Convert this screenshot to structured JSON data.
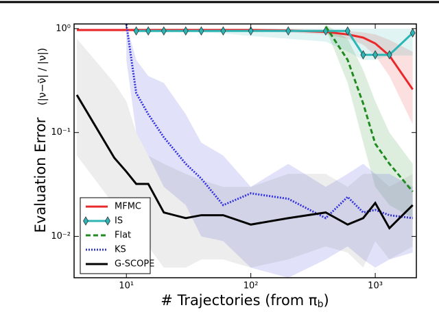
{
  "chart_data": {
    "type": "line",
    "xlabel_parts": [
      "# Trajectories (from π",
      "b",
      ")"
    ],
    "ylabel": "Evaluation Error",
    "ylabel_formula": "(|ν−ν̄| / |ν|)",
    "log_x": true,
    "log_y": true,
    "xlim": [
      3.8,
      2140
    ],
    "ylim": [
      0.004,
      1.11
    ],
    "xticks": [
      {
        "value": 10,
        "label": "10¹"
      },
      {
        "value": 100,
        "label": "10²"
      },
      {
        "value": 1000,
        "label": "10³"
      }
    ],
    "yticks": [
      {
        "value": 0.01,
        "label": "10⁻²"
      },
      {
        "value": 0.1,
        "label": "10⁻¹"
      },
      {
        "value": 1,
        "label": "10⁰"
      }
    ],
    "legend": "lower left",
    "x": [
      4,
      8,
      10,
      12,
      15,
      20,
      30,
      40,
      60,
      100,
      200,
      400,
      600,
      800,
      1000,
      1300,
      2000
    ],
    "series": [
      {
        "name": "MFMC",
        "color": "#e8282b",
        "linestyle": "solid",
        "values": [
          0.97,
          0.97,
          0.97,
          0.97,
          0.97,
          0.97,
          0.97,
          0.97,
          0.97,
          0.97,
          0.96,
          0.93,
          0.88,
          0.82,
          0.72,
          0.55,
          0.26
        ],
        "lower": [
          0.94,
          0.94,
          0.94,
          0.94,
          0.94,
          0.94,
          0.94,
          0.94,
          0.94,
          0.94,
          0.92,
          0.88,
          0.8,
          0.7,
          0.55,
          0.35,
          0.12
        ],
        "upper": [
          1,
          1,
          1,
          1,
          1,
          1,
          1,
          1,
          1,
          1,
          1,
          0.98,
          0.95,
          0.92,
          0.88,
          0.78,
          0.6
        ]
      },
      {
        "name": "IS",
        "color": "#2cb5b5",
        "linestyle": "solid",
        "marker": "diamond",
        "values": [
          null,
          null,
          null,
          0.95,
          0.95,
          0.95,
          0.95,
          0.95,
          0.95,
          0.95,
          0.95,
          0.95,
          0.95,
          0.56,
          0.56,
          0.56,
          0.91
        ],
        "lower": [
          null,
          null,
          null,
          0.92,
          0.92,
          0.92,
          0.92,
          0.92,
          0.9,
          0.85,
          0.8,
          0.75,
          0.6,
          0.5,
          0.5,
          0.55,
          0.55
        ],
        "upper": [
          null,
          null,
          null,
          1,
          1,
          1,
          1,
          1,
          1,
          1,
          1,
          1,
          1,
          1,
          1,
          1,
          1
        ]
      },
      {
        "name": "Flat",
        "color": "#1f8a1f",
        "linestyle": "dashed",
        "values": [
          null,
          null,
          null,
          null,
          null,
          null,
          null,
          null,
          null,
          null,
          null,
          1.05,
          0.5,
          0.19,
          0.078,
          0.05,
          0.027
        ],
        "lower": [
          null,
          null,
          null,
          null,
          null,
          null,
          null,
          null,
          null,
          null,
          null,
          1.0,
          0.3,
          0.08,
          0.03,
          0.02,
          0.015
        ],
        "upper": [
          null,
          null,
          null,
          null,
          null,
          null,
          null,
          null,
          null,
          null,
          null,
          1.1,
          0.8,
          0.4,
          0.2,
          0.1,
          0.05
        ]
      },
      {
        "name": "KS",
        "color": "#3333dd",
        "linestyle": "dotted",
        "values": [
          null,
          null,
          1.1,
          0.24,
          0.15,
          0.09,
          0.05,
          0.036,
          0.02,
          0.026,
          0.023,
          0.015,
          0.024,
          0.017,
          0.018,
          0.016,
          0.015
        ],
        "lower": [
          null,
          null,
          0.5,
          0.1,
          0.06,
          0.03,
          0.02,
          0.01,
          0.009,
          0.005,
          0.004,
          0.006,
          0.008,
          0.006,
          0.005,
          0.006,
          0.007
        ],
        "upper": [
          null,
          null,
          1.1,
          0.5,
          0.35,
          0.3,
          0.15,
          0.08,
          0.06,
          0.03,
          0.05,
          0.03,
          0.04,
          0.05,
          0.04,
          0.04,
          0.03
        ]
      },
      {
        "name": "G-SCOPE",
        "color": "#000000",
        "band_color": "#888888",
        "linestyle": "solid",
        "values": [
          0.23,
          0.057,
          0.042,
          0.032,
          0.032,
          0.017,
          0.015,
          0.016,
          0.016,
          0.013,
          0.015,
          0.017,
          0.013,
          0.015,
          0.021,
          0.012,
          0.02
        ],
        "lower": [
          0.06,
          0.02,
          0.01,
          0.01,
          0.008,
          0.005,
          0.005,
          0.006,
          0.006,
          0.005,
          0.006,
          0.008,
          0.007,
          0.005,
          0.009,
          0.006,
          0.008
        ],
        "upper": [
          0.8,
          0.3,
          0.2,
          0.1,
          0.06,
          0.05,
          0.04,
          0.035,
          0.03,
          0.03,
          0.04,
          0.04,
          0.03,
          0.04,
          0.04,
          0.03,
          0.04
        ]
      }
    ]
  }
}
